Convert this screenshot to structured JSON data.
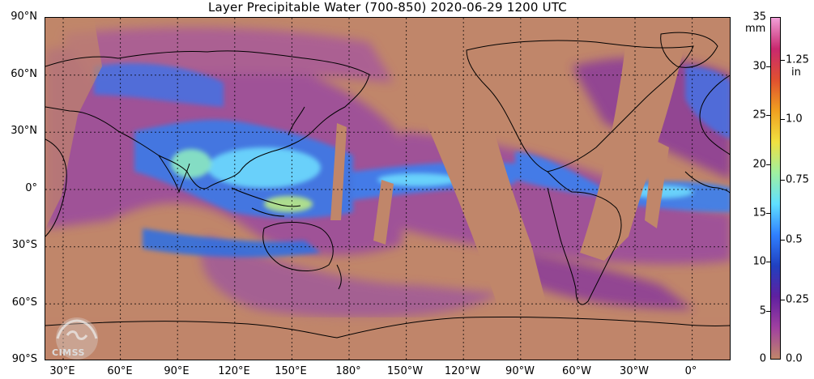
{
  "title": "Layer Precipitable Water (700-850)  2020-06-29 1200 UTC",
  "map": {
    "lat_labels": [
      "90°N",
      "60°N",
      "30°N",
      "0°",
      "30°S",
      "60°S",
      "90°S"
    ],
    "lon_labels": [
      "30°E",
      "60°E",
      "90°E",
      "120°E",
      "150°E",
      "180°",
      "150°W",
      "120°W",
      "90°W",
      "60°W",
      "30°W",
      "0°"
    ],
    "background_color": "#c0866a"
  },
  "colorbar": {
    "mm_unit": "mm",
    "in_unit": "in",
    "mm_ticks": [
      "35",
      "30",
      "25",
      "20",
      "15",
      "10",
      "5",
      "0"
    ],
    "in_ticks": [
      "1.25",
      "1.0",
      "0.75",
      "0.5",
      "0.25",
      "0.0"
    ],
    "colors": [
      "#f2a0d8",
      "#c8286e",
      "#e05030",
      "#f0a020",
      "#f0e040",
      "#a0f0a0",
      "#60e0ff",
      "#3080ff",
      "#2040c0",
      "#6020a0",
      "#a040a0",
      "#c0866a"
    ]
  },
  "logo": {
    "text": "CIMSS"
  }
}
